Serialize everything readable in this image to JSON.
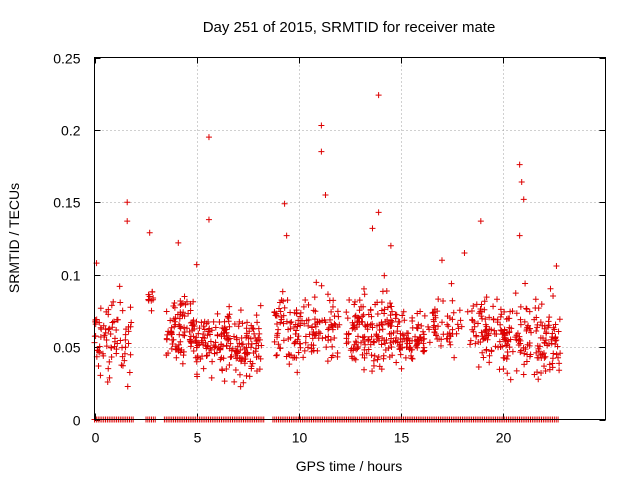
{
  "chart_data": {
    "type": "scatter",
    "title": "Day 251 of 2015, SRMTID for receiver mate",
    "xlabel": "GPS time / hours",
    "ylabel": "SRMTID / TECUs",
    "xlim": [
      0,
      25
    ],
    "ylim": [
      0,
      0.25
    ],
    "x_ticks": [
      0,
      5,
      10,
      15,
      20
    ],
    "x_tick_labels": [
      "0",
      "5",
      "10",
      "15",
      "20"
    ],
    "y_ticks": [
      0,
      0.05,
      0.1,
      0.15,
      0.2,
      0.25
    ],
    "y_tick_labels": [
      "0",
      "0.05",
      "0.1",
      "0.15",
      "0.2",
      "0.25"
    ],
    "grid": true,
    "marker": "+",
    "marker_color": "#dd0000",
    "series": [
      {
        "name": "SRMTID",
        "notable_points": [
          {
            "x": 13.9,
            "y": 0.224
          },
          {
            "x": 11.1,
            "y": 0.203
          },
          {
            "x": 5.6,
            "y": 0.195
          },
          {
            "x": 11.1,
            "y": 0.185
          },
          {
            "x": 20.8,
            "y": 0.176
          },
          {
            "x": 20.9,
            "y": 0.164
          },
          {
            "x": 11.3,
            "y": 0.155
          },
          {
            "x": 21.0,
            "y": 0.152
          },
          {
            "x": 1.6,
            "y": 0.15
          },
          {
            "x": 9.3,
            "y": 0.149
          },
          {
            "x": 13.9,
            "y": 0.143
          },
          {
            "x": 5.6,
            "y": 0.138
          },
          {
            "x": 1.6,
            "y": 0.137
          },
          {
            "x": 18.9,
            "y": 0.137
          },
          {
            "x": 13.6,
            "y": 0.132
          },
          {
            "x": 2.7,
            "y": 0.129
          },
          {
            "x": 20.8,
            "y": 0.127
          },
          {
            "x": 9.4,
            "y": 0.127
          },
          {
            "x": 4.1,
            "y": 0.122
          },
          {
            "x": 14.5,
            "y": 0.12
          },
          {
            "x": 18.1,
            "y": 0.115
          },
          {
            "x": 17.0,
            "y": 0.11
          },
          {
            "x": 0.1,
            "y": 0.108
          },
          {
            "x": 5.0,
            "y": 0.107
          },
          {
            "x": 22.6,
            "y": 0.106
          }
        ],
        "clusters": [
          {
            "x_min": 0.0,
            "x_max": 1.8,
            "y_center": 0.055,
            "y_spread": 0.045,
            "count": 80
          },
          {
            "x_min": 2.6,
            "x_max": 2.9,
            "y_center": 0.085,
            "y_spread": 0.015,
            "count": 10
          },
          {
            "x_min": 3.5,
            "x_max": 5.0,
            "y_center": 0.062,
            "y_spread": 0.04,
            "count": 95
          },
          {
            "x_min": 5.0,
            "x_max": 8.2,
            "y_center": 0.052,
            "y_spread": 0.04,
            "count": 190
          },
          {
            "x_min": 8.8,
            "x_max": 12.0,
            "y_center": 0.063,
            "y_spread": 0.04,
            "count": 150
          },
          {
            "x_min": 12.3,
            "x_max": 14.9,
            "y_center": 0.062,
            "y_spread": 0.045,
            "count": 160
          },
          {
            "x_min": 14.9,
            "x_max": 16.2,
            "y_center": 0.055,
            "y_spread": 0.03,
            "count": 75
          },
          {
            "x_min": 16.3,
            "x_max": 18.8,
            "y_center": 0.065,
            "y_spread": 0.04,
            "count": 70
          },
          {
            "x_min": 18.8,
            "x_max": 20.1,
            "y_center": 0.06,
            "y_spread": 0.04,
            "count": 75
          },
          {
            "x_min": 20.1,
            "x_max": 22.8,
            "y_center": 0.055,
            "y_spread": 0.045,
            "count": 140
          }
        ],
        "zero_band": {
          "x_min": 0.0,
          "x_max": 22.7,
          "y": 0.0,
          "gaps": [
            [
              1.9,
              2.5
            ],
            [
              3.0,
              3.4
            ],
            [
              8.3,
              8.7
            ]
          ]
        }
      }
    ]
  }
}
